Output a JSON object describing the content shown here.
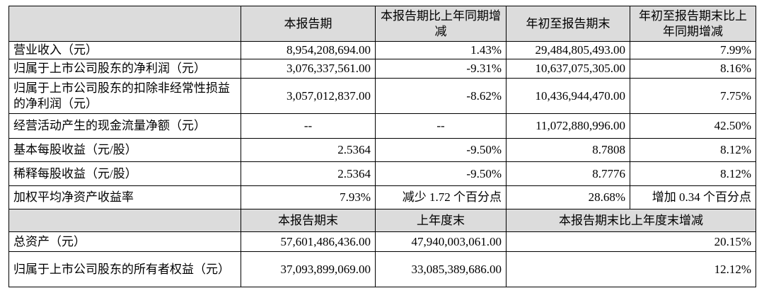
{
  "table": {
    "header": [
      "本报告期",
      "本报告期比上年同期增减",
      "年初至报告期末",
      "年初至报告期末比上年同期增减"
    ],
    "rows": [
      {
        "label": "营业收入（元）",
        "cells": [
          "8,954,208,694.00",
          "1.43%",
          "29,484,805,493.00",
          "7.99%"
        ]
      },
      {
        "label": "归属于上市公司股东的净利润（元）",
        "cells": [
          "3,076,337,561.00",
          "-9.31%",
          "10,637,075,305.00",
          "8.16%"
        ]
      },
      {
        "label": "归属于上市公司股东的扣除非经常性损益的净利润（元）",
        "cells": [
          "3,057,012,837.00",
          "-8.62%",
          "10,436,944,470.00",
          "7.75%"
        ]
      },
      {
        "label": "经营活动产生的现金流量净额（元）",
        "cells": [
          "--",
          "--",
          "11,072,880,996.00",
          "42.50%"
        ]
      },
      {
        "label": "基本每股收益（元/股）",
        "cells": [
          "2.5364",
          "-9.50%",
          "8.7808",
          "8.12%"
        ]
      },
      {
        "label": "稀释每股收益（元/股）",
        "cells": [
          "2.5364",
          "-9.50%",
          "8.7776",
          "8.12%"
        ]
      },
      {
        "label": "加权平均净资产收益率",
        "cells": [
          "7.93%",
          "减少 1.72 个百分点",
          "28.68%",
          "增加 0.34 个百分点"
        ]
      }
    ],
    "subheader": [
      "本报告期末",
      "上年度末",
      "本报告期末比上年度末增减"
    ],
    "rows2": [
      {
        "label": "总资产（元）",
        "cells": [
          "57,601,486,436.00",
          "47,940,003,061.00",
          "20.15%"
        ]
      },
      {
        "label": "归属于上市公司股东的所有者权益（元）",
        "cells": [
          "37,093,899,069.00",
          "33,085,389,686.00",
          "12.12%"
        ]
      }
    ]
  }
}
